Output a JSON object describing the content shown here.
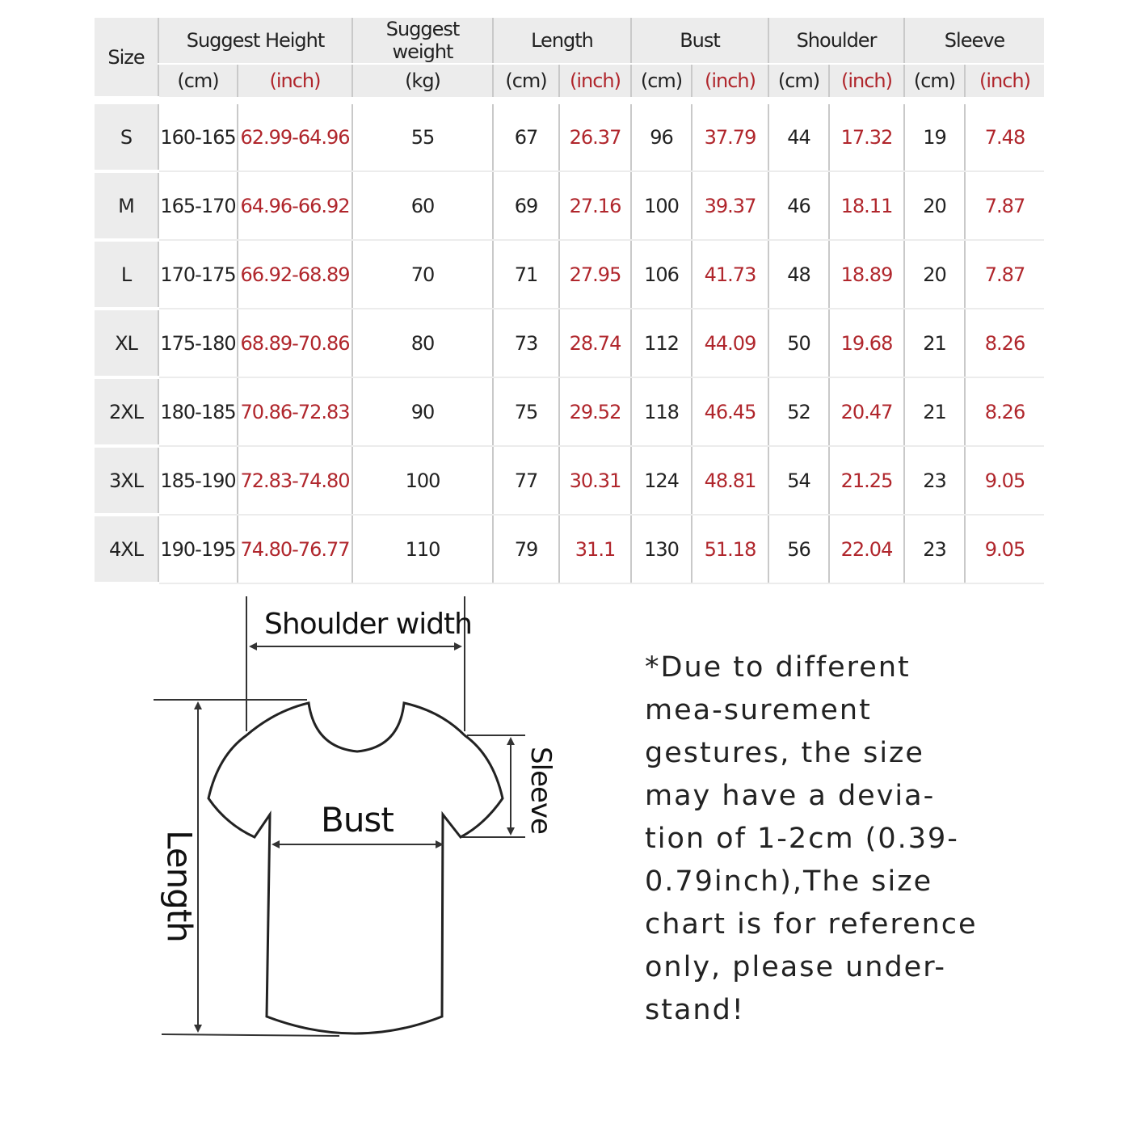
{
  "headers": {
    "size": "Size",
    "height": "Suggest Height",
    "weight": "Suggest weight",
    "length": "Length",
    "bust": "Bust",
    "shoulder": "Shoulder",
    "sleeve": "Sleeve",
    "cm": "(cm)",
    "inch": "(inch)",
    "kg": "(kg)"
  },
  "rows": [
    [
      "S",
      "160-165",
      "62.99-64.96",
      "55",
      "67",
      "26.37",
      "96",
      "37.79",
      "44",
      "17.32",
      "19",
      "7.48"
    ],
    [
      "M",
      "165-170",
      "64.96-66.92",
      "60",
      "69",
      "27.16",
      "100",
      "39.37",
      "46",
      "18.11",
      "20",
      "7.87"
    ],
    [
      "L",
      "170-175",
      "66.92-68.89",
      "70",
      "71",
      "27.95",
      "106",
      "41.73",
      "48",
      "18.89",
      "20",
      "7.87"
    ],
    [
      "XL",
      "175-180",
      "68.89-70.86",
      "80",
      "73",
      "28.74",
      "112",
      "44.09",
      "50",
      "19.68",
      "21",
      "8.26"
    ],
    [
      "2XL",
      "180-185",
      "70.86-72.83",
      "90",
      "75",
      "29.52",
      "118",
      "46.45",
      "52",
      "20.47",
      "21",
      "8.26"
    ],
    [
      "3XL",
      "185-190",
      "72.83-74.80",
      "100",
      "77",
      "30.31",
      "124",
      "48.81",
      "54",
      "21.25",
      "23",
      "9.05"
    ],
    [
      "4XL",
      "190-195",
      "74.80-76.77",
      "110",
      "79",
      "31.1",
      "130",
      "51.18",
      "56",
      "22.04",
      "23",
      "9.05"
    ]
  ],
  "diagram": {
    "shoulder_width": "Shoulder width",
    "bust": "Bust",
    "length": "Length",
    "sleeve": "Sleeve"
  },
  "note": "*Due to different mea-surement gestures, the size may have a devia-tion of 1-2cm (0.39-0.79inch),The size chart is for reference only, please under-stand!",
  "colors": {
    "inch_text": "#b0262c",
    "header_bg": "#ececec"
  }
}
